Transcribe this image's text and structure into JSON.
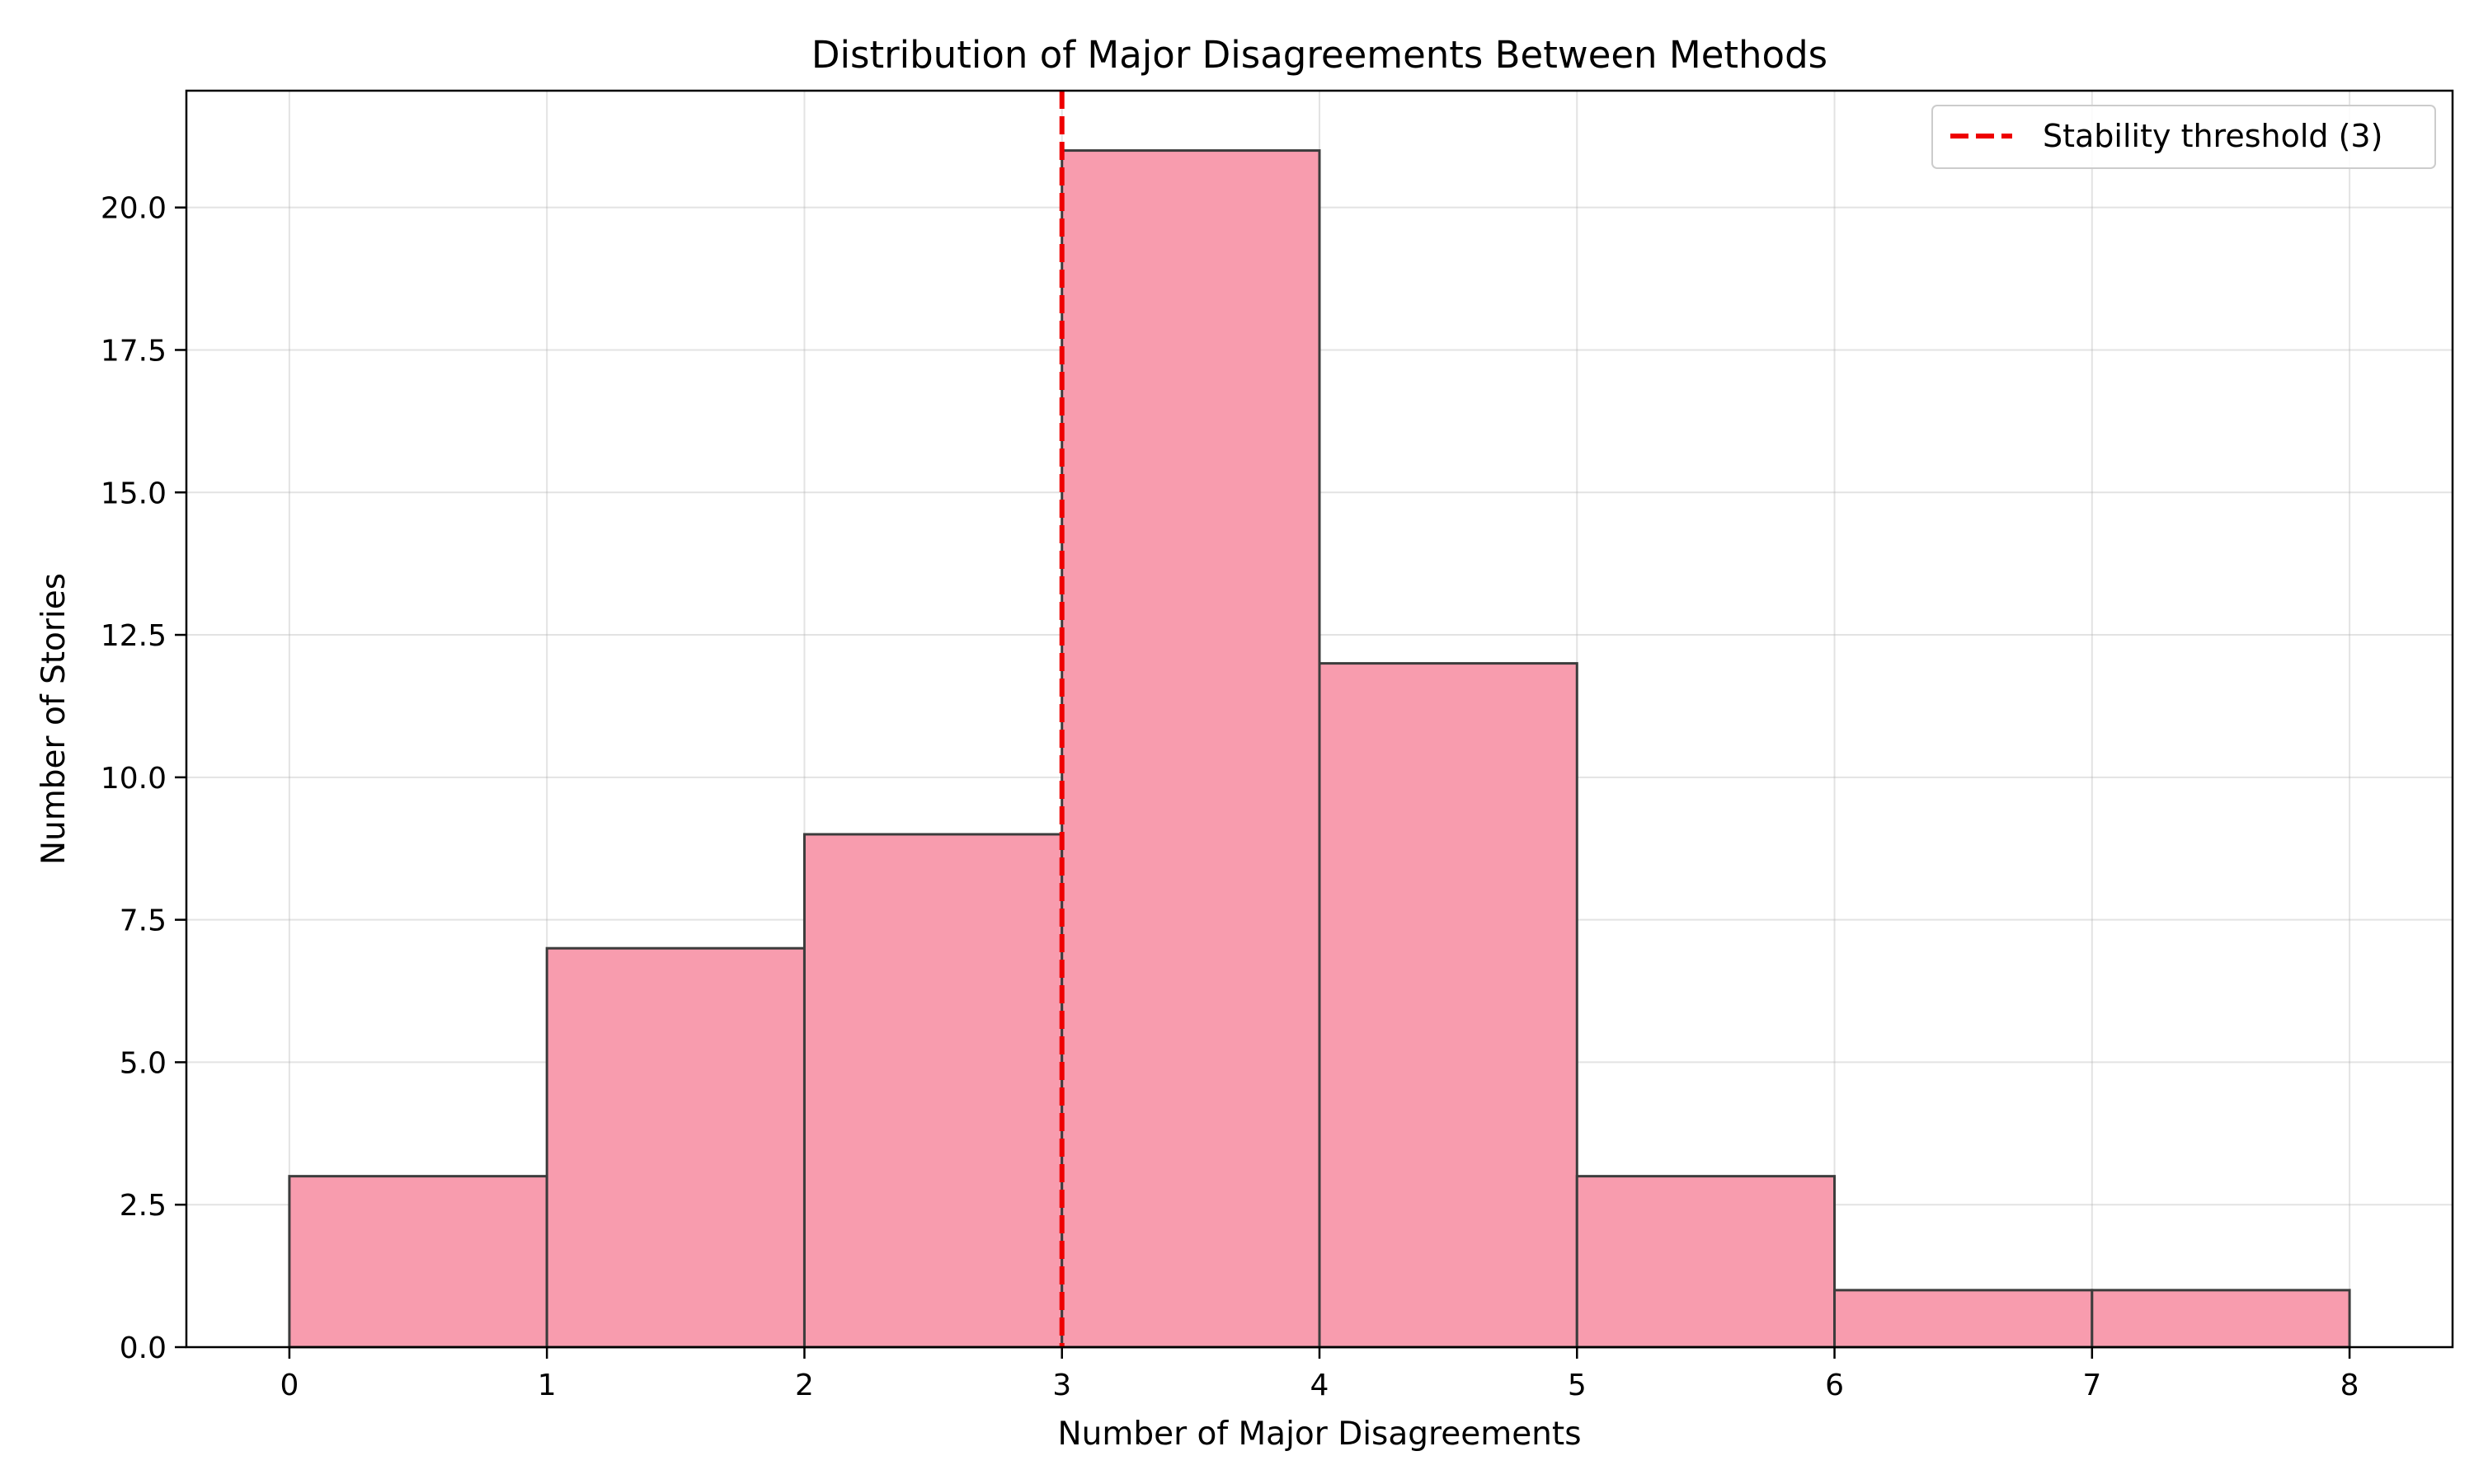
{
  "chart_data": {
    "type": "bar",
    "title": "Distribution of Major Disagreements Between Methods",
    "xlabel": "Number of Major Disagreements",
    "ylabel": "Number of Stories",
    "bins": [
      {
        "start": 0,
        "end": 1,
        "count": 3
      },
      {
        "start": 1,
        "end": 2,
        "count": 7
      },
      {
        "start": 2,
        "end": 3,
        "count": 9
      },
      {
        "start": 3,
        "end": 4,
        "count": 21
      },
      {
        "start": 4,
        "end": 5,
        "count": 12
      },
      {
        "start": 5,
        "end": 6,
        "count": 3
      },
      {
        "start": 6,
        "end": 7,
        "count": 1
      },
      {
        "start": 7,
        "end": 8,
        "count": 1
      }
    ],
    "xlim": [
      -0.4,
      8.4
    ],
    "ylim": [
      0,
      22.05
    ],
    "xticks": [
      "0",
      "1",
      "2",
      "3",
      "4",
      "5",
      "6",
      "7",
      "8"
    ],
    "yticks": [
      "0.0",
      "2.5",
      "5.0",
      "7.5",
      "10.0",
      "12.5",
      "15.0",
      "17.5",
      "20.0"
    ],
    "threshold": {
      "x": 3,
      "label": "Stability threshold (3)",
      "color": "#ee0000",
      "style": "dashed"
    },
    "bar_color": "#f89cae",
    "edge_color": "#3c3c3c",
    "grid": true,
    "legend_position": "top-right"
  }
}
